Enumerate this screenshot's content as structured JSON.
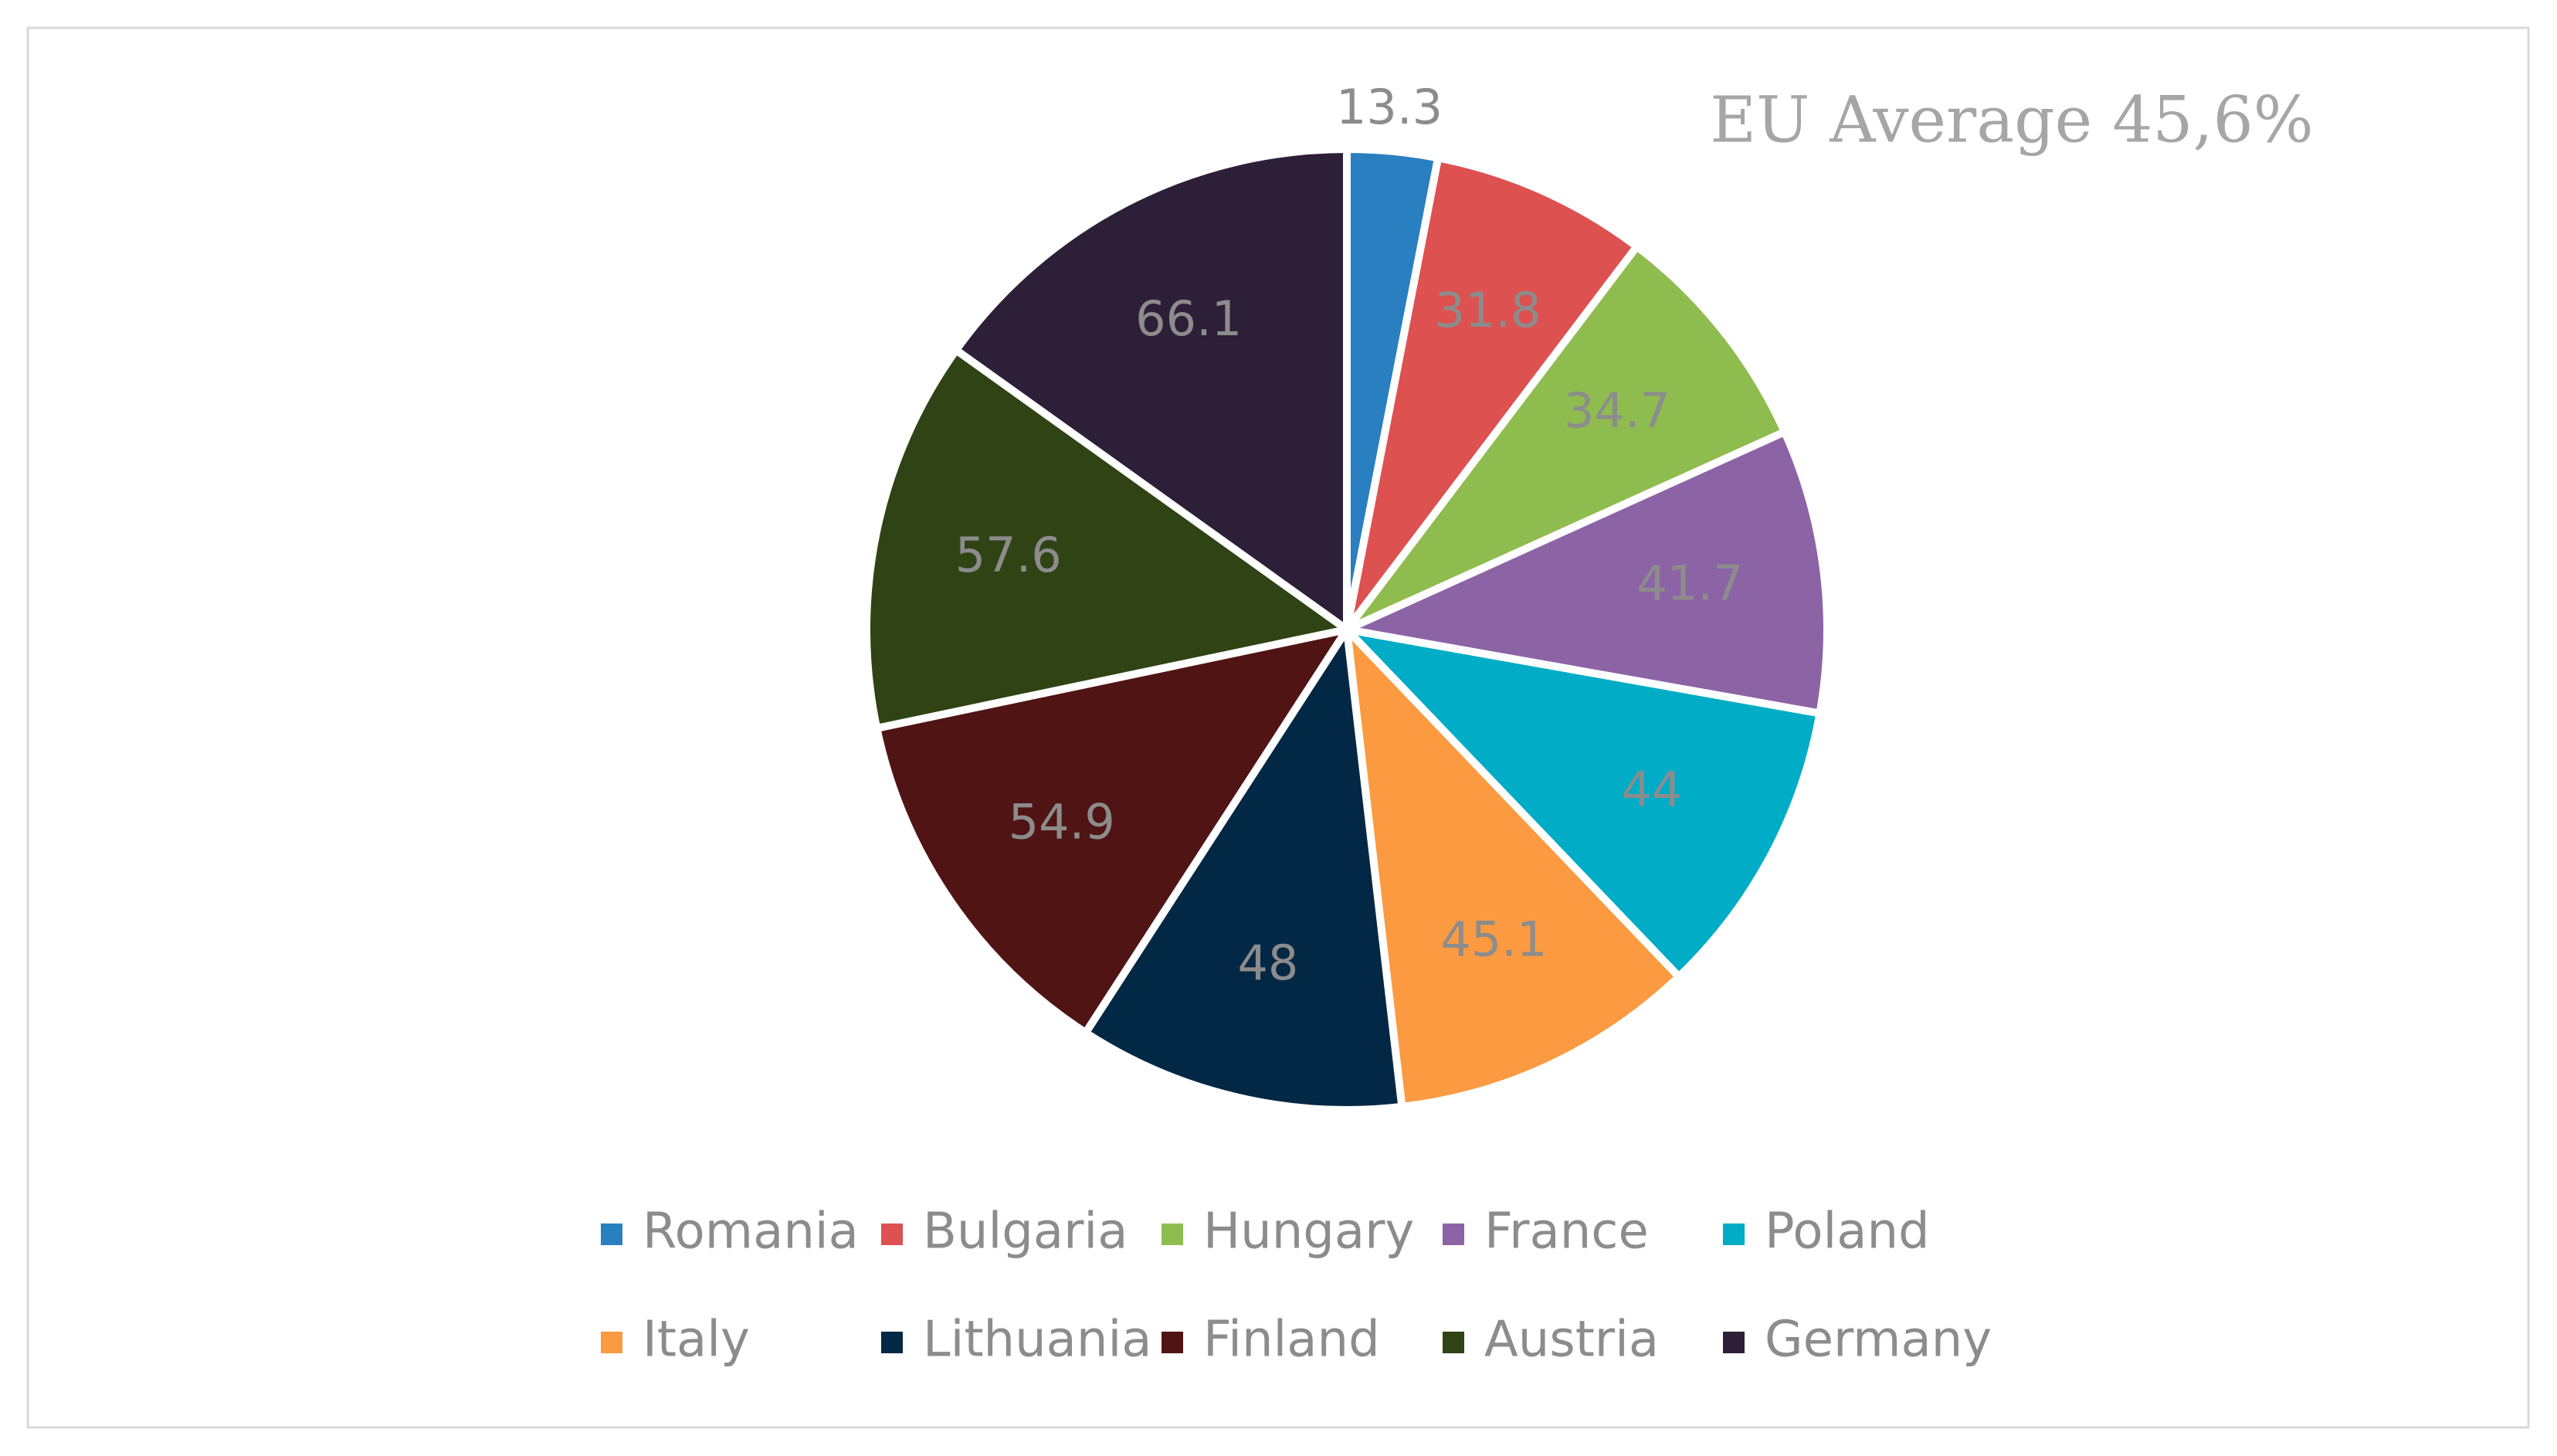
{
  "chart_data": {
    "type": "pie",
    "annotation": "EU Average 45,6%",
    "categories": [
      "Romania",
      "Bulgaria",
      "Hungary",
      "France",
      "Poland",
      "Italy",
      "Lithuania",
      "Finland",
      "Austria",
      "Germany"
    ],
    "values": [
      13.3,
      31.8,
      34.7,
      41.7,
      44,
      45.1,
      48,
      54.9,
      57.6,
      66.1
    ],
    "colors": [
      "#2a7fc1",
      "#dd5150",
      "#8fbc4f",
      "#8c64a6",
      "#00acc6",
      "#fb9a40",
      "#032845",
      "#511414",
      "#304314",
      "#2d1f38"
    ]
  }
}
